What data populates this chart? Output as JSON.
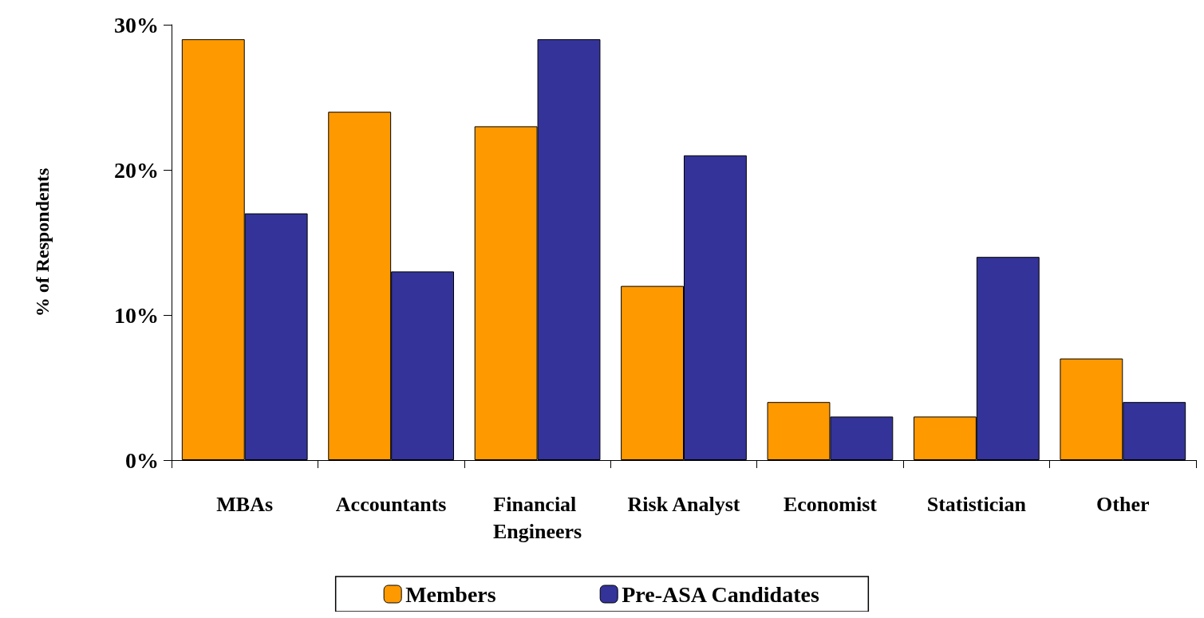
{
  "chart_data": {
    "type": "bar",
    "ylabel": "% of Respondents",
    "categories": [
      "MBAs",
      "Accountants",
      "Financial Engineers",
      "Risk Analyst",
      "Economist",
      "Statistician",
      "Other"
    ],
    "series": [
      {
        "name": "Members",
        "color": "#ff9900",
        "values": [
          29,
          24,
          23,
          12,
          4,
          3,
          7
        ]
      },
      {
        "name": "Pre-ASA Candidates",
        "color": "#333399",
        "values": [
          17,
          13,
          29,
          21,
          3,
          14,
          4
        ]
      }
    ],
    "ylim": [
      0,
      30
    ],
    "yticks": [
      {
        "value": 0,
        "label": "0%"
      },
      {
        "value": 10,
        "label": "10%"
      },
      {
        "value": 20,
        "label": "20%"
      },
      {
        "value": 30,
        "label": "30%"
      }
    ],
    "grid": false,
    "legend": "bottom"
  }
}
